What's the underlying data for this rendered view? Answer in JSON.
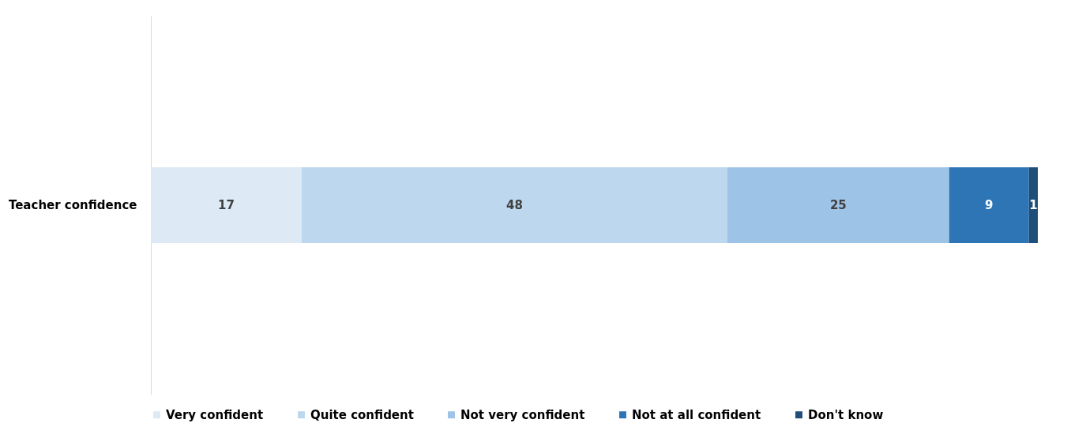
{
  "chart_data": {
    "type": "bar",
    "orientation": "horizontal",
    "stacked": true,
    "categories": [
      "Teacher confidence"
    ],
    "data_labels": true,
    "legend": "bottom",
    "series": [
      {
        "name": "Very confident",
        "color": "#dde9f5",
        "values": [
          17
        ]
      },
      {
        "name": "Quite confident",
        "color": "#bdd7ee",
        "values": [
          48
        ]
      },
      {
        "name": "Not very confident",
        "color": "#9dc3e6",
        "values": [
          25
        ]
      },
      {
        "name": "Not at all confident",
        "color": "#2e75b6",
        "values": [
          9
        ]
      },
      {
        "name": "Don't know",
        "color": "#1f4e79",
        "values": [
          1
        ]
      }
    ]
  }
}
